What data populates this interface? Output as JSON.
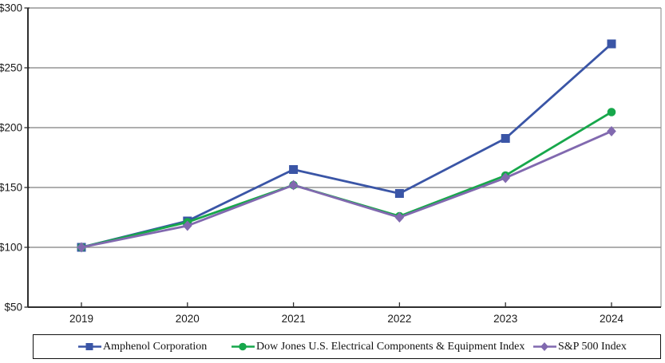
{
  "chart_data": {
    "type": "line",
    "title": "",
    "xlabel": "",
    "ylabel": "",
    "categories": [
      "2019",
      "2020",
      "2021",
      "2022",
      "2023",
      "2024"
    ],
    "y_ticks": [
      {
        "label": "$300",
        "value": 300
      },
      {
        "label": "$250",
        "value": 250
      },
      {
        "label": "$200",
        "value": 200
      },
      {
        "label": "$150",
        "value": 150
      },
      {
        "label": "$100",
        "value": 100
      },
      {
        "label": "$50",
        "value": 50
      }
    ],
    "ylim": [
      50,
      300
    ],
    "grid": "horizontal",
    "legend_position": "bottom",
    "series": [
      {
        "name": "Amphenol Corporation",
        "marker": "square",
        "color": "#3A55A6",
        "values": [
          100,
          122,
          165,
          145,
          191,
          270
        ]
      },
      {
        "name": "Dow Jones U.S. Electrical Components & Equipment Index",
        "marker": "circle",
        "color": "#17A74B",
        "values": [
          100,
          121,
          152,
          126,
          160,
          213
        ]
      },
      {
        "name": "S&P 500 Index",
        "marker": "diamond",
        "color": "#8169AF",
        "values": [
          100,
          118,
          152,
          125,
          158,
          197
        ]
      }
    ],
    "colors": {
      "gridline": "#7F7F7F",
      "axis": "#2E2E2E",
      "plot_border_right": "#9A9A9A",
      "background": "#FFFFFF",
      "legend_border": "#111111"
    }
  }
}
